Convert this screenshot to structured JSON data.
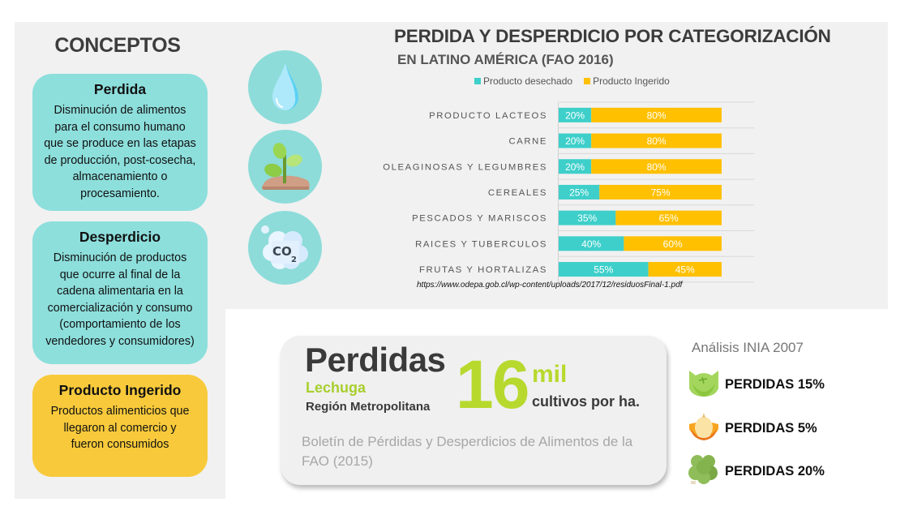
{
  "concepts": {
    "title": "CONCEPTOS",
    "cards": [
      {
        "title": "Perdida",
        "lines": [
          "Disminución de alimentos",
          "para el consumo humano",
          "que se produce en las etapas",
          "de producción, post-cosecha,",
          "almacenamiento o",
          "procesamiento."
        ],
        "color": "#8ddfdc"
      },
      {
        "title": "Desperdicio",
        "lines": [
          "Disminución de productos",
          "que ocurre al final de la",
          "cadena alimentaria en la",
          "comercialización y consumo",
          "(comportamiento de los",
          "vendedores y consumidores)"
        ],
        "color": "#8ddfdc"
      },
      {
        "title": "Producto Ingerido",
        "lines": [
          "Productos alimenticios que",
          "llegaron al comercio y",
          "fueron consumidos"
        ],
        "color": "#f8ca3b"
      }
    ]
  },
  "icons": [
    "water-drop-icon",
    "plant-sprout-icon",
    "co2-cloud-icon"
  ],
  "chart_data": {
    "type": "bar",
    "orientation": "horizontal",
    "stacked": true,
    "title": "PERDIDA Y DESPERDICIO POR CATEGORIZACIÓN",
    "subtitle": "EN LATINO AMÉRICA (FAO 2016)",
    "categories": [
      "PRODUCTO LACTEOS",
      "CARNE",
      "OLEAGINOSAS Y LEGUMBRES",
      "CEREALES",
      "PESCADOS Y MARISCOS",
      "RAICES Y TUBERCULOS",
      "FRUTAS Y HORTALIZAS"
    ],
    "series": [
      {
        "name": "Producto desechado",
        "color": "#3ecfca",
        "values": [
          20,
          20,
          20,
          25,
          35,
          40,
          55
        ]
      },
      {
        "name": "Producto Ingerido",
        "color": "#ffc000",
        "values": [
          80,
          80,
          80,
          75,
          65,
          60,
          45
        ]
      }
    ],
    "value_suffix": "%",
    "xlim": [
      0,
      100
    ],
    "legend": "top",
    "grid": true,
    "xlabel": "",
    "ylabel": "",
    "source": "https://www.odepa.gob.cl/wp-content/uploads/2017/12/residuosFinal-1.pdf"
  },
  "stat": {
    "heading": "Perdidas",
    "crop": "Lechuga",
    "region": "Región Metropolitana",
    "number": "16",
    "unit": "mil",
    "unit_desc": "cultivos por ha.",
    "source": "Boletín de Pérdidas y Desperdicios de Alimentos de la FAO (2015)"
  },
  "inia": {
    "title": "Análisis INIA 2007",
    "items": [
      {
        "icon": "cabbage-icon",
        "label": "PERDIDAS 15%"
      },
      {
        "icon": "onion-icon",
        "label": "PERDIDAS 5%"
      },
      {
        "icon": "lettuce-icon",
        "label": "PERDIDAS 20%"
      }
    ]
  }
}
